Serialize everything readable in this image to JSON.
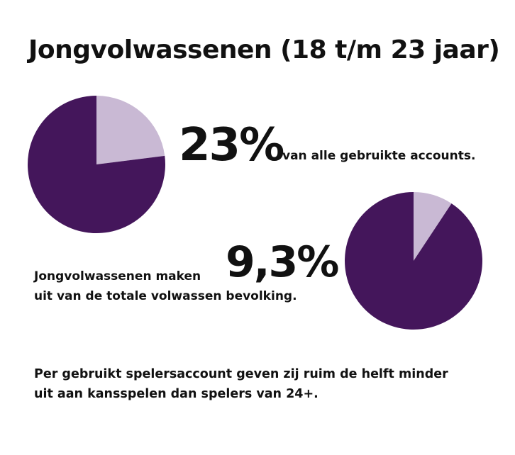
{
  "title": "Jongvolwassenen (18 t/m 23 jaar)",
  "colors": {
    "dark": "#44165b",
    "light": "#c9b9d4"
  },
  "stat1": {
    "value_label": "23%",
    "description": "van alle gebruikte accounts."
  },
  "stat2": {
    "value_label": "9,3%",
    "description_line1": "Jongvolwassenen maken",
    "description_line2": "uit van de totale volwassen bevolking."
  },
  "footer": {
    "line1": "Per gebruikt spelersaccount geven zij ruim de helft minder",
    "line2": "uit aan kansspelen dan spelers van 24+."
  },
  "chart_data": [
    {
      "type": "pie",
      "values": [
        23,
        77
      ],
      "slice_colors": [
        "#c9b9d4",
        "#44165b"
      ]
    },
    {
      "type": "pie",
      "values": [
        9.3,
        90.7
      ],
      "slice_colors": [
        "#c9b9d4",
        "#44165b"
      ]
    }
  ]
}
